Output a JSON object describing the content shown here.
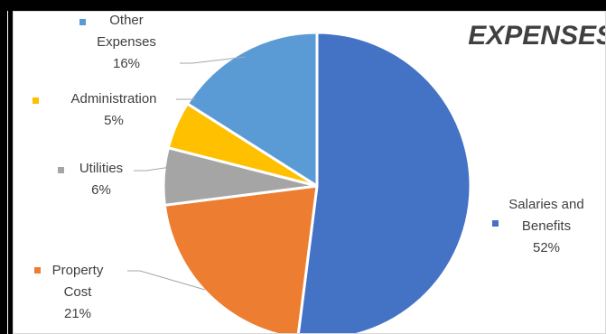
{
  "chart_data": {
    "type": "pie",
    "title": "EXPENSES",
    "slices": [
      {
        "name": "Salaries and Benefits",
        "label_lines": [
          "Salaries and",
          "Benefits"
        ],
        "value": 52,
        "percent_label": "52%",
        "color": "#4472C4"
      },
      {
        "name": "Property Cost",
        "label_lines": [
          "Property",
          "Cost"
        ],
        "value": 21,
        "percent_label": "21%",
        "color": "#ED7D31"
      },
      {
        "name": "Utilities",
        "label_lines": [
          "Utilities"
        ],
        "value": 6,
        "percent_label": "6%",
        "color": "#A5A5A5"
      },
      {
        "name": "Administration",
        "label_lines": [
          "Administration"
        ],
        "value": 5,
        "percent_label": "5%",
        "color": "#FFC000"
      },
      {
        "name": "Other Expenses",
        "label_lines": [
          "Other",
          "Expenses"
        ],
        "value": 16,
        "percent_label": "16%",
        "color": "#5B9BD5"
      }
    ],
    "start_angle_deg": 0,
    "direction": "clockwise",
    "legend": "none"
  }
}
